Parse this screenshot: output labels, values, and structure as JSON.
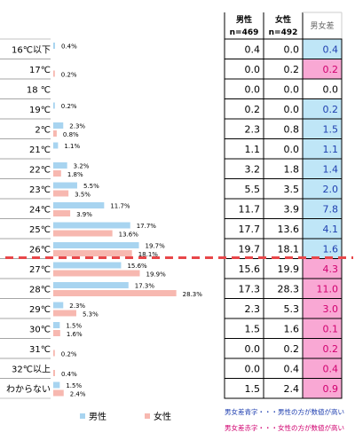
{
  "chart_data": {
    "type": "bar",
    "categories": [
      "16℃以下",
      "17℃",
      "18 ℃",
      "19℃",
      "2℃",
      "21℃",
      "22℃",
      "23℃",
      "24℃",
      "25℃",
      "26℃",
      "27℃",
      "28℃",
      "29℃",
      "30℃",
      "31℃",
      "32℃以上",
      "わからない"
    ],
    "series": [
      {
        "name": "男性",
        "color": "#a8d4f0",
        "values": [
          0.4,
          0.0,
          0.0,
          0.2,
          2.3,
          1.1,
          3.2,
          5.5,
          11.7,
          17.7,
          19.7,
          15.6,
          17.3,
          2.3,
          1.5,
          0.0,
          0.0,
          1.5
        ]
      },
      {
        "name": "女性",
        "color": "#f7b8b0",
        "values": [
          0.0,
          0.2,
          0.0,
          0.0,
          0.8,
          0.0,
          1.8,
          3.5,
          3.9,
          13.6,
          18.1,
          19.9,
          28.3,
          5.3,
          1.6,
          0.2,
          0.4,
          2.4
        ]
      }
    ],
    "bar_labels": {
      "male": [
        "0.4%",
        "",
        "",
        "0.2%",
        "2.3%",
        "1.1%",
        "3.2%",
        "5.5%",
        "11.7%",
        "17.7%",
        "19.7%",
        "15.6%",
        "17.3%",
        "2.3%",
        "1.5%",
        "",
        "",
        "1.5%"
      ],
      "female": [
        "",
        "0.2%",
        "",
        "",
        "0.8%",
        "",
        "1.8%",
        "3.5%",
        "3.9%",
        "13.6%",
        "18.1%",
        "19.9%",
        "28.3%",
        "5.3%",
        "1.6%",
        "0.2%",
        "0.4%",
        "2.4%"
      ]
    },
    "legend": {
      "placement": "bottom",
      "items": [
        "男性",
        "女性"
      ]
    },
    "table": {
      "headers": {
        "male": "男性",
        "male_n": "n=469",
        "female": "女性",
        "female_n": "n=492",
        "diff": "男女差"
      },
      "male": [
        "0.4",
        "0.0",
        "0.0",
        "0.2",
        "2.3",
        "1.1",
        "3.2",
        "5.5",
        "11.7",
        "17.7",
        "19.7",
        "15.6",
        "17.3",
        "2.3",
        "1.5",
        "0.0",
        "0.0",
        "1.5"
      ],
      "female": [
        "0.0",
        "0.2",
        "0.0",
        "0.0",
        "0.8",
        "0.0",
        "1.8",
        "3.5",
        "3.9",
        "13.6",
        "18.1",
        "19.9",
        "28.3",
        "5.3",
        "1.6",
        "0.2",
        "0.4",
        "2.4"
      ],
      "diff": [
        "0.4",
        "0.2",
        "0.0",
        "0.2",
        "1.5",
        "1.1",
        "1.4",
        "2.0",
        "7.8",
        "4.1",
        "1.6",
        "4.3",
        "11.0",
        "3.0",
        "0.1",
        "0.2",
        "0.4",
        "0.9"
      ],
      "diff_side": [
        "male",
        "female",
        "none",
        "male",
        "male",
        "male",
        "male",
        "male",
        "male",
        "male",
        "male",
        "female",
        "female",
        "female",
        "female",
        "female",
        "female",
        "female"
      ]
    },
    "colors": {
      "male_bar": "#a8d4f0",
      "female_bar": "#f7b8b0",
      "male_cell": "#bfe6f7",
      "female_cell": "#f9a8d4",
      "male_text": "#1f3fb0",
      "female_text": "#d0006f",
      "divider": "#e8474a"
    }
  },
  "notes": {
    "blue": "男女差青字・・・男性の方が数値が高い",
    "red": "男女差赤字・・・女性の方が数値が高い"
  }
}
